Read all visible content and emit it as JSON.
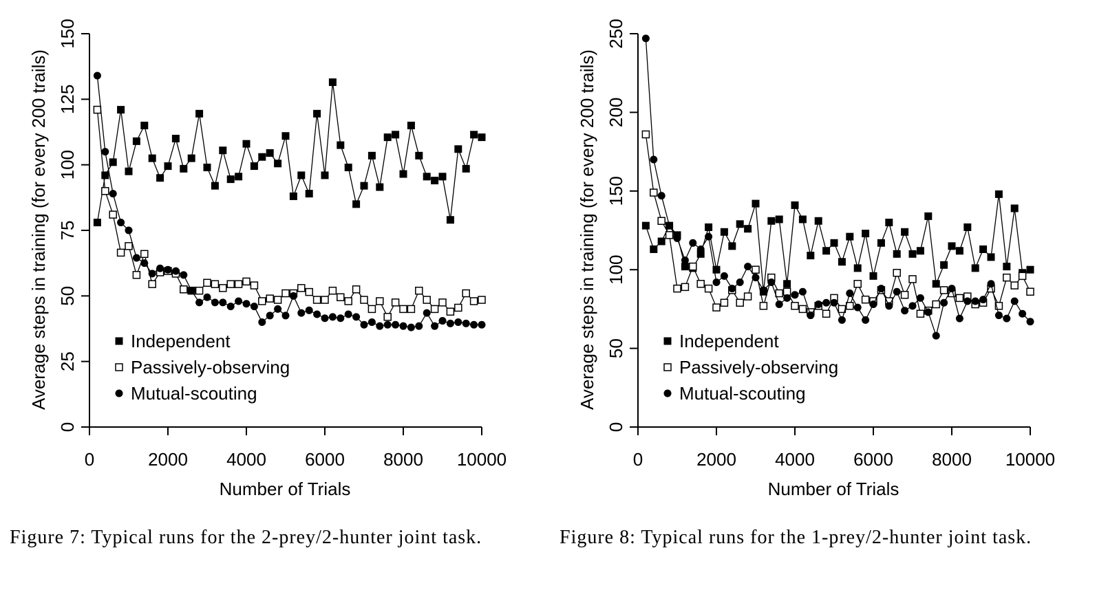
{
  "figures": [
    {
      "caption": "Figure 7: Typical runs for the 2-prey/2-hunter joint task.",
      "chart_data": {
        "type": "line",
        "xlabel": "Number of Trials",
        "ylabel": "Average steps in training (for every 200 trails)",
        "xlim": [
          0,
          10000
        ],
        "ylim": [
          0,
          150
        ],
        "xticks": [
          0,
          2000,
          4000,
          6000,
          8000,
          10000
        ],
        "yticks": [
          0,
          25,
          50,
          75,
          100,
          125,
          150
        ],
        "grid": false,
        "legend_position": "lower-left",
        "x": [
          200,
          400,
          600,
          800,
          1000,
          1200,
          1400,
          1600,
          1800,
          2000,
          2200,
          2400,
          2600,
          2800,
          3000,
          3200,
          3400,
          3600,
          3800,
          4000,
          4200,
          4400,
          4600,
          4800,
          5000,
          5200,
          5400,
          5600,
          5800,
          6000,
          6200,
          6400,
          6600,
          6800,
          7000,
          7200,
          7400,
          7600,
          7800,
          8000,
          8200,
          8400,
          8600,
          8800,
          9000,
          9200,
          9400,
          9600,
          9800,
          10000
        ],
        "series": [
          {
            "name": "Independent",
            "marker": "filled-square",
            "values": [
              78,
              96,
              101,
              121,
              97.5,
              109,
              115,
              102.5,
              95,
              99.5,
              110,
              98.5,
              102.5,
              119.5,
              99,
              92,
              105.5,
              94.5,
              95.5,
              108,
              99.5,
              103,
              104.5,
              100.5,
              111,
              88,
              96,
              89,
              119.5,
              96,
              131.5,
              107.5,
              99,
              85,
              92,
              103.5,
              91.5,
              110.5,
              111.5,
              96.5,
              115,
              103.5,
              95.5,
              94,
              95.5,
              79,
              106,
              98.5,
              111.5,
              110.5
            ]
          },
          {
            "name": "Passively-observing",
            "marker": "open-square",
            "values": [
              121,
              90,
              81,
              66.5,
              69,
              58,
              66,
              54.5,
              59,
              59.5,
              58.5,
              52.5,
              52,
              52,
              55,
              54.5,
              53,
              54.5,
              54.5,
              55.5,
              54,
              48,
              49,
              48.5,
              51,
              51,
              53,
              51.5,
              48.5,
              48.5,
              52,
              49.5,
              48,
              52.5,
              48.5,
              45,
              48,
              42,
              47.5,
              45,
              45,
              52,
              48.5,
              45,
              47.5,
              44,
              45.5,
              51,
              48,
              48.5
            ]
          },
          {
            "name": "Mutual-scouting",
            "marker": "filled-circle",
            "values": [
              134,
              105,
              89,
              78,
              75,
              64.5,
              62.5,
              58.5,
              60.5,
              60,
              59.5,
              58,
              52,
              47.5,
              49.5,
              47.5,
              47.5,
              46,
              48,
              47,
              46,
              40,
              42.5,
              45,
              42.5,
              50,
              43.5,
              44.5,
              43,
              41.5,
              42,
              41.5,
              43,
              42,
              39,
              40,
              38.5,
              39,
              39,
              38.5,
              38,
              38.5,
              43.5,
              38.5,
              40.5,
              39.5,
              40,
              39.5,
              39,
              39
            ]
          }
        ],
        "legend": [
          "Independent",
          "Passively-observing",
          "Mutual-scouting"
        ]
      }
    },
    {
      "caption": "Figure 8: Typical runs for the 1-prey/2-hunter joint task.",
      "chart_data": {
        "type": "line",
        "xlabel": "Number of Trials",
        "ylabel": "Average steps in training (for every 200 trails)",
        "xlim": [
          0,
          10000
        ],
        "ylim": [
          0,
          250
        ],
        "xticks": [
          0,
          2000,
          4000,
          6000,
          8000,
          10000
        ],
        "yticks": [
          0,
          50,
          100,
          150,
          200,
          250
        ],
        "grid": false,
        "legend_position": "lower-left",
        "x": [
          200,
          400,
          600,
          800,
          1000,
          1200,
          1400,
          1600,
          1800,
          2000,
          2200,
          2400,
          2600,
          2800,
          3000,
          3200,
          3400,
          3600,
          3800,
          4000,
          4200,
          4400,
          4600,
          4800,
          5000,
          5200,
          5400,
          5600,
          5800,
          6000,
          6200,
          6400,
          6600,
          6800,
          7000,
          7200,
          7400,
          7600,
          7800,
          8000,
          8200,
          8400,
          8600,
          8800,
          9000,
          9200,
          9400,
          9600,
          9800,
          10000
        ],
        "series": [
          {
            "name": "Independent",
            "marker": "filled-square",
            "values": [
              128,
              113,
              118,
              128,
              122,
              102,
              101,
              110,
              127,
              100,
              124,
              115,
              129,
              126,
              142,
              86,
              131,
              132,
              91,
              141,
              132,
              109,
              131,
              112,
              117,
              105,
              121,
              101,
              123,
              96,
              117,
              130,
              110,
              124,
              110,
              112,
              134,
              91,
              103,
              115,
              112,
              127,
              101,
              113,
              108,
              148,
              102,
              139,
              98,
              100
            ]
          },
          {
            "name": "Passively-observing",
            "marker": "open-square",
            "values": [
              186,
              149,
              131,
              122,
              88,
              89,
              102,
              91,
              88,
              76,
              79,
              87,
              79,
              83,
              100,
              77,
              95,
              85,
              86,
              77,
              75,
              73,
              77,
              72,
              82,
              75,
              77,
              91,
              81,
              80,
              87,
              80,
              98,
              84,
              94,
              72,
              74,
              78,
              87,
              85,
              82,
              83,
              78,
              79,
              88,
              77,
              95,
              90,
              96,
              86
            ]
          },
          {
            "name": "Mutual-scouting",
            "marker": "filled-circle",
            "values": [
              247,
              170,
              147,
              128,
              120,
              106,
              117,
              113,
              121,
              92,
              96,
              88,
              92,
              102,
              95,
              87,
              92,
              78,
              82,
              84,
              86,
              71,
              78,
              79,
              79,
              68,
              85,
              76,
              68,
              78,
              88,
              77,
              86,
              74,
              77,
              82,
              73,
              58,
              79,
              88,
              69,
              80,
              80,
              81,
              91,
              71,
              69,
              80,
              72,
              67
            ]
          }
        ],
        "legend": [
          "Independent",
          "Passively-observing",
          "Mutual-scouting"
        ]
      }
    }
  ]
}
